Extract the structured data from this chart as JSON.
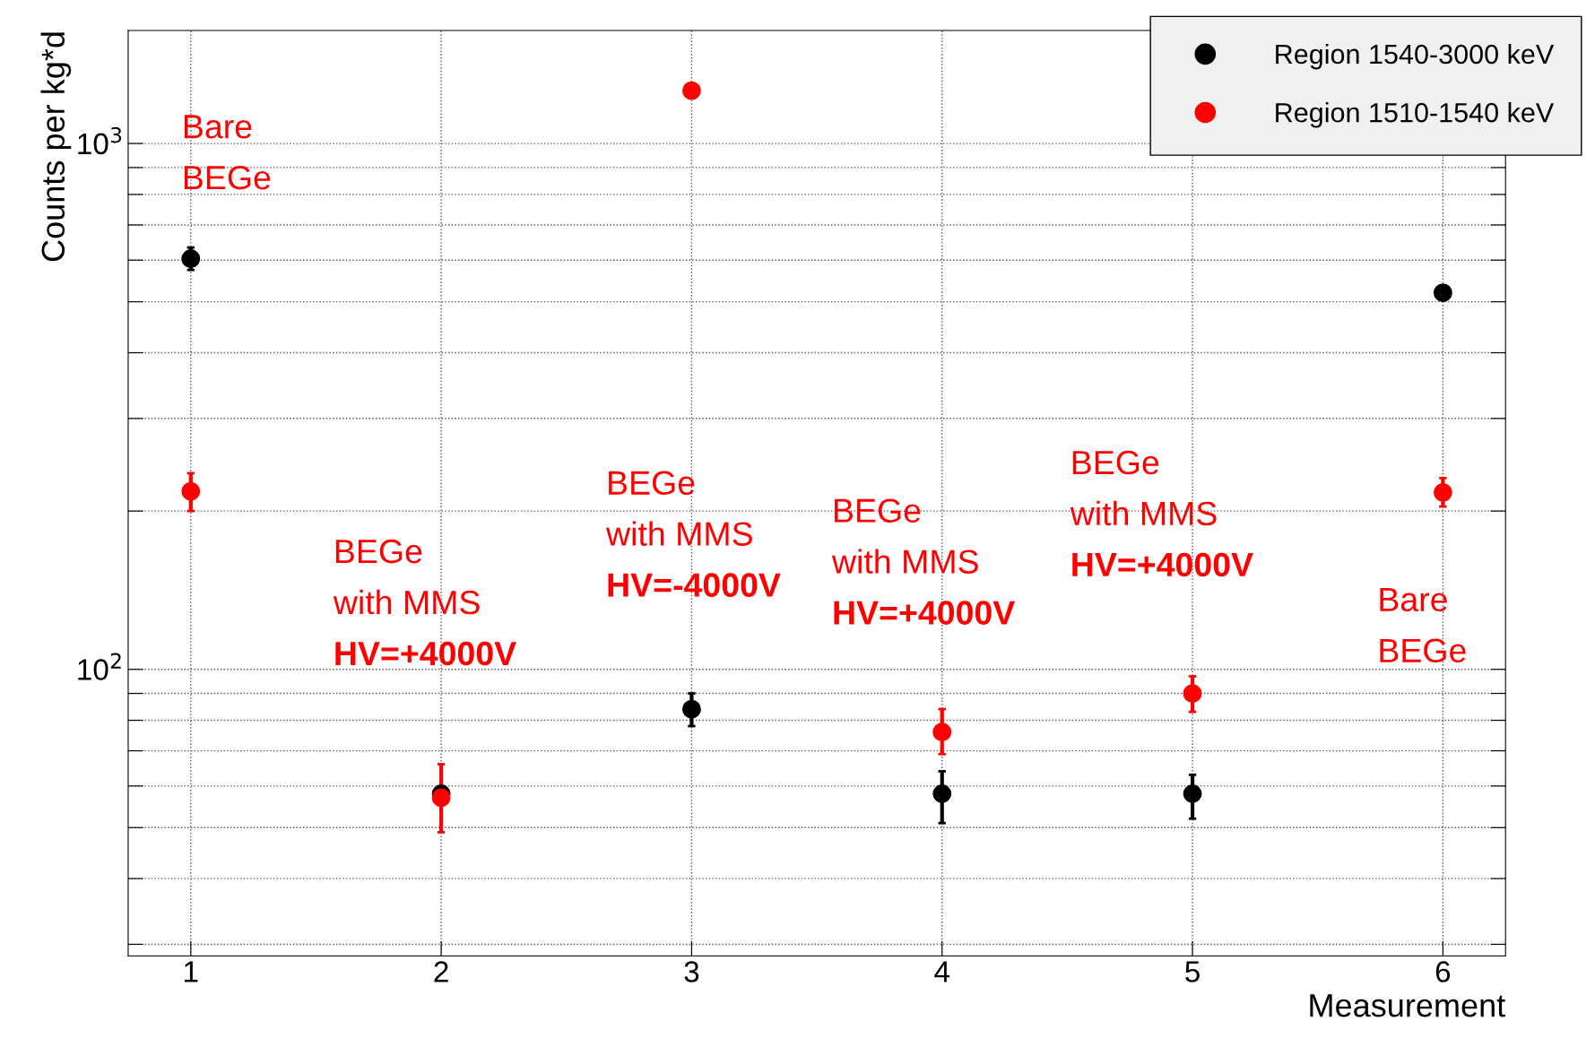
{
  "chart_data": {
    "type": "scatter",
    "xlabel": "Measurement",
    "ylabel": "Counts per kg*d",
    "log": "y",
    "grid": true,
    "legend": "top right",
    "marker": "circle",
    "x": [
      1,
      2,
      3,
      4,
      5,
      6
    ],
    "xlim": [
      0.75,
      6.25
    ],
    "xticks": [
      1,
      2,
      3,
      4,
      5,
      6
    ],
    "ylim": [
      28.5,
      1640
    ],
    "yticks": [
      {
        "value": 30,
        "label": null
      },
      {
        "value": 40,
        "label": null
      },
      {
        "value": 50,
        "label": null
      },
      {
        "value": 60,
        "label": null
      },
      {
        "value": 70,
        "label": null
      },
      {
        "value": 80,
        "label": null
      },
      {
        "value": 90,
        "label": null
      },
      {
        "value": 100,
        "label": "10$^{2}$"
      },
      {
        "value": 200,
        "label": null
      },
      {
        "value": 300,
        "label": null
      },
      {
        "value": 400,
        "label": null
      },
      {
        "value": 500,
        "label": null
      },
      {
        "value": 600,
        "label": null
      },
      {
        "value": 700,
        "label": null
      },
      {
        "value": 800,
        "label": null
      },
      {
        "value": 900,
        "label": null
      },
      {
        "value": 1000,
        "label": "10$^{3}$"
      }
    ],
    "series": [
      {
        "name": "Region 1540-3000 keV",
        "color": "#000000",
        "values": [
          604,
          58,
          84,
          58,
          58,
          520
        ],
        "errors": [
          [
            575,
            634
          ],
          null,
          [
            78,
            90
          ],
          [
            51,
            64
          ],
          [
            52,
            63
          ],
          null
        ]
      },
      {
        "name": "Region 1510-1540 keV",
        "color": "#ff0000",
        "values": [
          218,
          57,
          1260,
          76,
          90,
          217
        ],
        "errors": [
          [
            200,
            236
          ],
          [
            49,
            66
          ],
          null,
          [
            69,
            84
          ],
          [
            83,
            97
          ],
          [
            204,
            231
          ]
        ]
      }
    ],
    "annotations": [
      "Bare\nBEGe",
      "BEGe\nwith MMS\nHV=+4000V",
      "BEGe\nwith MMS\nHV=-4000V",
      "BEGe\nwith MMS\nHV=+4000V",
      "BEGe\nwith MMS\nHV=+4000V",
      "Bare\nBEGe"
    ]
  }
}
